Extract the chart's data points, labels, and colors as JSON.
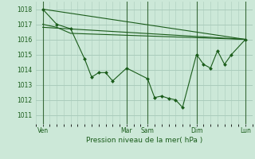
{
  "background_color": "#cce8d8",
  "grid_color": "#aaccbc",
  "line_color": "#1a5c1a",
  "marker_color": "#1a5c1a",
  "ylabel_ticks": [
    1011,
    1012,
    1013,
    1014,
    1015,
    1016,
    1017,
    1018
  ],
  "ylim": [
    1010.4,
    1018.5
  ],
  "xlim": [
    0,
    31
  ],
  "xlabel": "Pression niveau de la mer( hPa )",
  "day_labels": [
    "Ven",
    "Mar",
    "Sam",
    "Dim",
    "Lun"
  ],
  "day_positions": [
    1,
    13,
    16,
    23,
    30
  ],
  "series1_x": [
    1,
    3,
    5,
    7,
    8,
    9,
    10,
    11,
    13,
    16,
    17,
    18,
    19,
    20,
    21,
    23,
    24,
    25,
    26,
    27,
    28,
    30
  ],
  "series1_y": [
    1018,
    1017,
    1016.7,
    1014.7,
    1013.5,
    1013.8,
    1013.8,
    1013.25,
    1014.1,
    1013.4,
    1012.15,
    1012.25,
    1012.1,
    1012.0,
    1011.5,
    1015.0,
    1014.35,
    1014.1,
    1015.25,
    1014.35,
    1015.0,
    1016.0
  ],
  "series2_x": [
    1,
    30
  ],
  "series2_y": [
    1018,
    1016.0
  ],
  "series3_x": [
    1,
    30
  ],
  "series3_y": [
    1016.8,
    1016.0
  ],
  "series4_x": [
    1,
    3,
    5,
    30
  ],
  "series4_y": [
    1017.0,
    1016.8,
    1016.4,
    1016.0
  ],
  "vline_positions": [
    1,
    13,
    16,
    23,
    30
  ],
  "vline_color": "#3a6a3a",
  "figsize": [
    3.2,
    2.0
  ],
  "dpi": 100,
  "font_size_ticks": 5.5,
  "font_size_xlabel": 6.5
}
